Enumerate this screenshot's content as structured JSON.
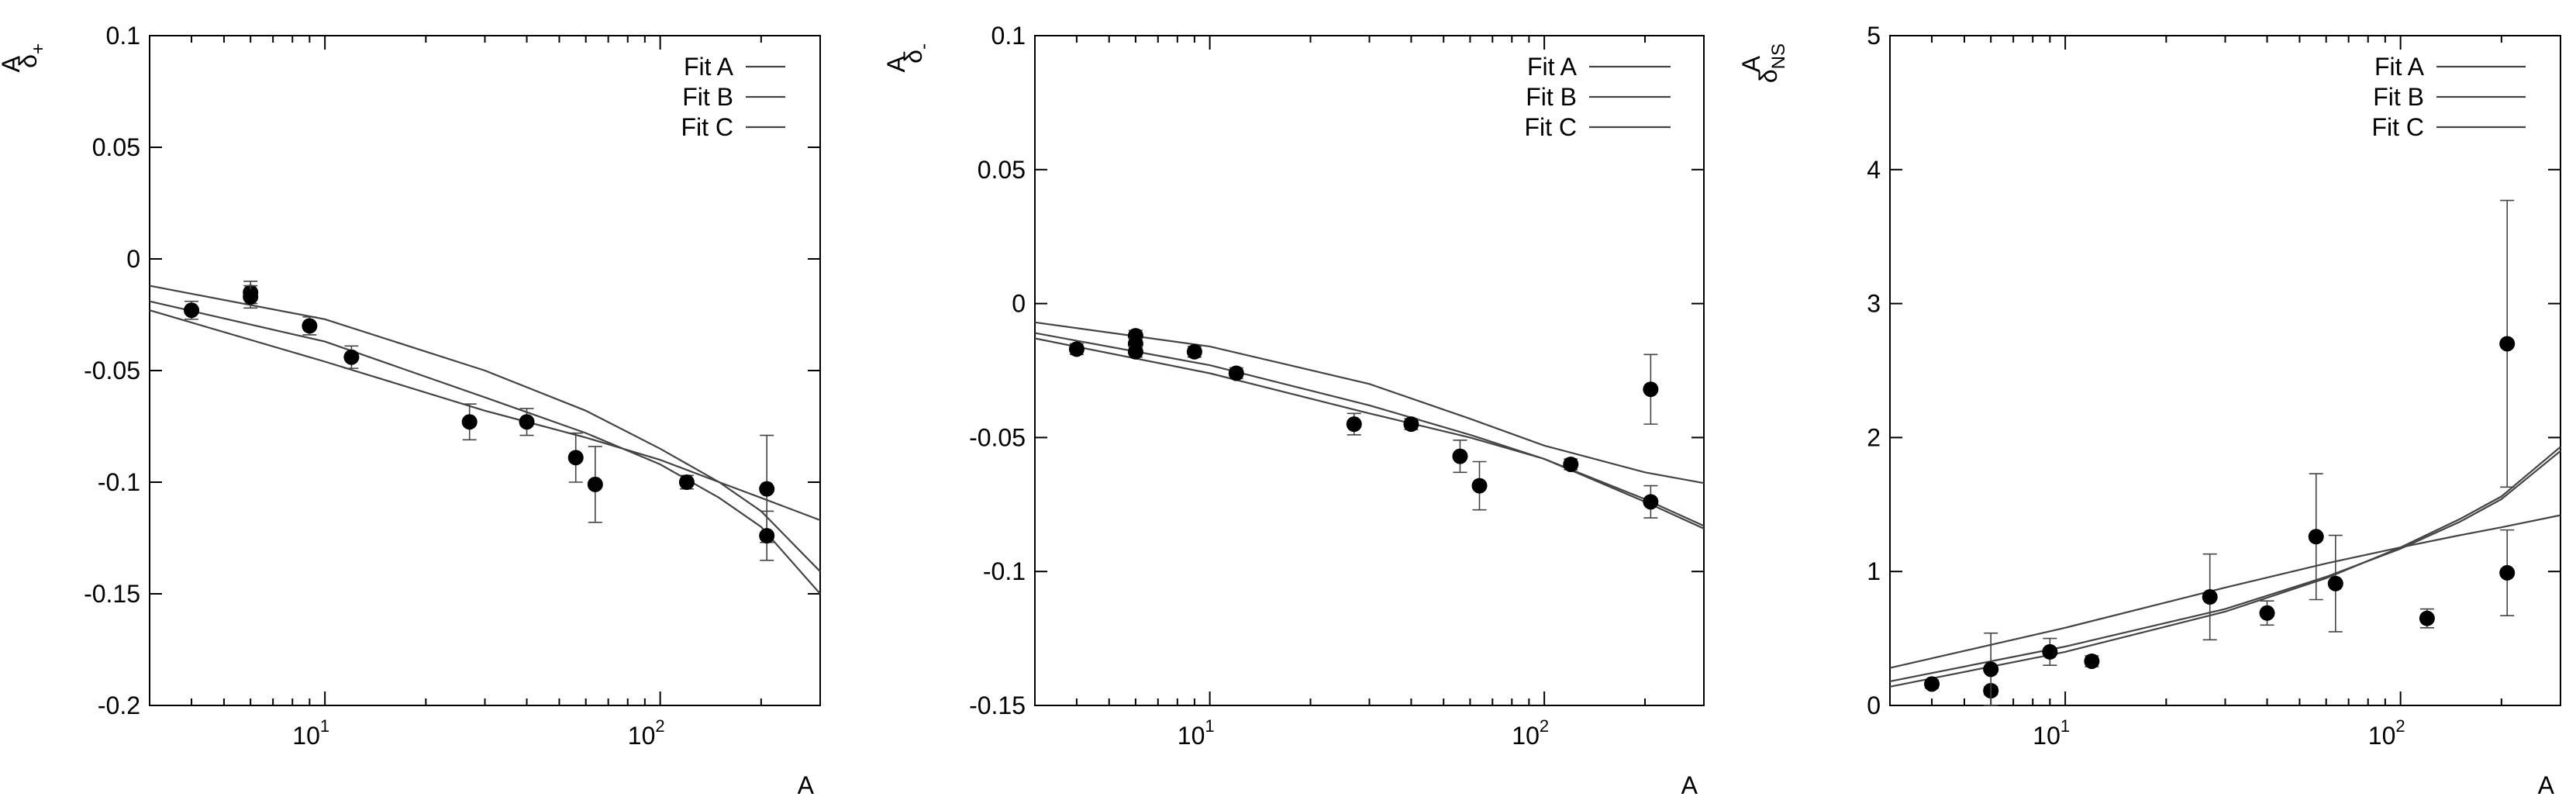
{
  "chart_data": [
    {
      "type": "line",
      "xlabel": "A",
      "ylabel_main": "δ",
      "ylabel_sup": "A",
      "ylabel_sub": "+",
      "xscale": "log",
      "xlim": [
        3,
        300
      ],
      "ylim": [
        -0.2,
        0.1
      ],
      "yticks": [
        -0.2,
        -0.15,
        -0.1,
        -0.05,
        0,
        0.05,
        0.1
      ],
      "ytick_labels": [
        "-0.2",
        "-0.15",
        "-0.1",
        "-0.05",
        "0",
        "0.05",
        "0.1"
      ],
      "xticks": [
        10,
        100
      ],
      "xtick_labels": [
        {
          "base": "10",
          "exp": "1"
        },
        {
          "base": "10",
          "exp": "2"
        }
      ],
      "legend": {
        "placement": "top-right",
        "entries": [
          "Fit A",
          "Fit B",
          "Fit C"
        ]
      },
      "series": [
        {
          "name": "Fit A",
          "x": [
            3,
            10,
            30,
            60,
            100,
            150,
            200,
            300
          ],
          "y": [
            -0.012,
            -0.027,
            -0.05,
            -0.068,
            -0.085,
            -0.1,
            -0.113,
            -0.14
          ]
        },
        {
          "name": "Fit B",
          "x": [
            3,
            10,
            30,
            60,
            100,
            150,
            200,
            300
          ],
          "y": [
            -0.019,
            -0.037,
            -0.062,
            -0.078,
            -0.092,
            -0.107,
            -0.12,
            -0.15
          ]
        },
        {
          "name": "Fit C",
          "x": [
            3,
            10,
            30,
            60,
            100,
            150,
            200,
            300
          ],
          "y": [
            -0.023,
            -0.046,
            -0.068,
            -0.08,
            -0.09,
            -0.1,
            -0.107,
            -0.117
          ]
        }
      ],
      "points": [
        {
          "x": 4,
          "y": -0.023,
          "err": 0.004
        },
        {
          "x": 6,
          "y": -0.015,
          "err": 0.005
        },
        {
          "x": 6,
          "y": -0.017,
          "err": 0.005
        },
        {
          "x": 9,
          "y": -0.03,
          "err": 0.004
        },
        {
          "x": 12,
          "y": -0.044,
          "err": 0.005
        },
        {
          "x": 27,
          "y": -0.073,
          "err": 0.008
        },
        {
          "x": 40,
          "y": -0.073,
          "err": 0.006
        },
        {
          "x": 56,
          "y": -0.089,
          "err": 0.011
        },
        {
          "x": 64,
          "y": -0.101,
          "err": 0.017
        },
        {
          "x": 120,
          "y": -0.1,
          "err": 0.003
        },
        {
          "x": 208,
          "y": -0.103,
          "err": 0.024
        },
        {
          "x": 208,
          "y": -0.124,
          "err": 0.011
        }
      ]
    },
    {
      "type": "line",
      "xlabel": "A",
      "ylabel_main": "δ",
      "ylabel_sup": "A",
      "ylabel_sub": "-",
      "xscale": "log",
      "xlim": [
        3,
        300
      ],
      "ylim": [
        -0.15,
        0.1
      ],
      "yticks": [
        -0.15,
        -0.1,
        -0.05,
        0,
        0.05,
        0.1
      ],
      "ytick_labels": [
        "-0.15",
        "-0.1",
        "-0.05",
        "0",
        "0.05",
        "0.1"
      ],
      "xticks": [
        10,
        100
      ],
      "xtick_labels": [
        {
          "base": "10",
          "exp": "1"
        },
        {
          "base": "10",
          "exp": "2"
        }
      ],
      "legend": {
        "placement": "top-right",
        "entries": [
          "Fit A",
          "Fit B",
          "Fit C"
        ]
      },
      "series": [
        {
          "name": "Fit A",
          "x": [
            3,
            10,
            30,
            60,
            100,
            200,
            300
          ],
          "y": [
            -0.007,
            -0.016,
            -0.03,
            -0.043,
            -0.053,
            -0.063,
            -0.067
          ]
        },
        {
          "name": "Fit B",
          "x": [
            3,
            10,
            30,
            60,
            100,
            200,
            300
          ],
          "y": [
            -0.011,
            -0.023,
            -0.038,
            -0.049,
            -0.058,
            -0.073,
            -0.083
          ]
        },
        {
          "name": "Fit C",
          "x": [
            3,
            10,
            30,
            60,
            100,
            200,
            300
          ],
          "y": [
            -0.013,
            -0.026,
            -0.041,
            -0.05,
            -0.058,
            -0.074,
            -0.084
          ]
        }
      ],
      "points": [
        {
          "x": 4,
          "y": -0.017,
          "err": 0.002
        },
        {
          "x": 6,
          "y": -0.012,
          "err": 0.002
        },
        {
          "x": 6,
          "y": -0.015,
          "err": 0.002
        },
        {
          "x": 6,
          "y": -0.018,
          "err": 0.002
        },
        {
          "x": 9,
          "y": -0.018,
          "err": 0.002
        },
        {
          "x": 12,
          "y": -0.026,
          "err": 0.002
        },
        {
          "x": 27,
          "y": -0.045,
          "err": 0.004
        },
        {
          "x": 40,
          "y": -0.045,
          "err": 0.002
        },
        {
          "x": 56,
          "y": -0.057,
          "err": 0.006
        },
        {
          "x": 64,
          "y": -0.068,
          "err": 0.009
        },
        {
          "x": 120,
          "y": -0.06,
          "err": 0.002
        },
        {
          "x": 208,
          "y": -0.032,
          "err": 0.013
        },
        {
          "x": 208,
          "y": -0.074,
          "err": 0.006
        }
      ]
    },
    {
      "type": "line",
      "xlabel": "A",
      "ylabel_main": "δ",
      "ylabel_sup": "A",
      "ylabel_sub": "NS",
      "xscale": "log",
      "xlim": [
        3,
        300
      ],
      "ylim": [
        0,
        5
      ],
      "yticks": [
        0,
        1,
        2,
        3,
        4,
        5
      ],
      "ytick_labels": [
        "0",
        "1",
        "2",
        "3",
        "4",
        "5"
      ],
      "xticks": [
        10,
        100
      ],
      "xtick_labels": [
        {
          "base": "10",
          "exp": "1"
        },
        {
          "base": "10",
          "exp": "2"
        }
      ],
      "legend": {
        "placement": "top-right",
        "entries": [
          "Fit A",
          "Fit B",
          "Fit C"
        ]
      },
      "series": [
        {
          "name": "Fit A",
          "x": [
            3,
            10,
            30,
            60,
            100,
            150,
            200,
            300
          ],
          "y": [
            0.28,
            0.58,
            0.88,
            1.06,
            1.18,
            1.27,
            1.33,
            1.42
          ]
        },
        {
          "name": "Fit B",
          "x": [
            3,
            10,
            30,
            60,
            100,
            150,
            200,
            300
          ],
          "y": [
            0.14,
            0.4,
            0.7,
            0.95,
            1.18,
            1.39,
            1.56,
            1.93
          ]
        },
        {
          "name": "Fit C",
          "x": [
            3,
            10,
            30,
            60,
            100,
            150,
            200,
            300
          ],
          "y": [
            0.18,
            0.44,
            0.72,
            0.96,
            1.17,
            1.37,
            1.54,
            1.9
          ]
        }
      ],
      "points": [
        {
          "x": 4,
          "y": 0.16,
          "err": 0.03
        },
        {
          "x": 6,
          "y": 0.11,
          "err": 0.03
        },
        {
          "x": 6,
          "y": 0.27,
          "err": 0.27
        },
        {
          "x": 9,
          "y": 0.4,
          "err": 0.1
        },
        {
          "x": 12,
          "y": 0.33,
          "err": 0.04
        },
        {
          "x": 27,
          "y": 0.81,
          "err": 0.32
        },
        {
          "x": 40,
          "y": 0.69,
          "err": 0.09
        },
        {
          "x": 56,
          "y": 1.26,
          "err": 0.47
        },
        {
          "x": 64,
          "y": 0.91,
          "err": 0.36
        },
        {
          "x": 120,
          "y": 0.65,
          "err": 0.07
        },
        {
          "x": 208,
          "y": 2.7,
          "err": 1.07
        },
        {
          "x": 208,
          "y": 0.99,
          "err": 0.32
        }
      ]
    }
  ]
}
